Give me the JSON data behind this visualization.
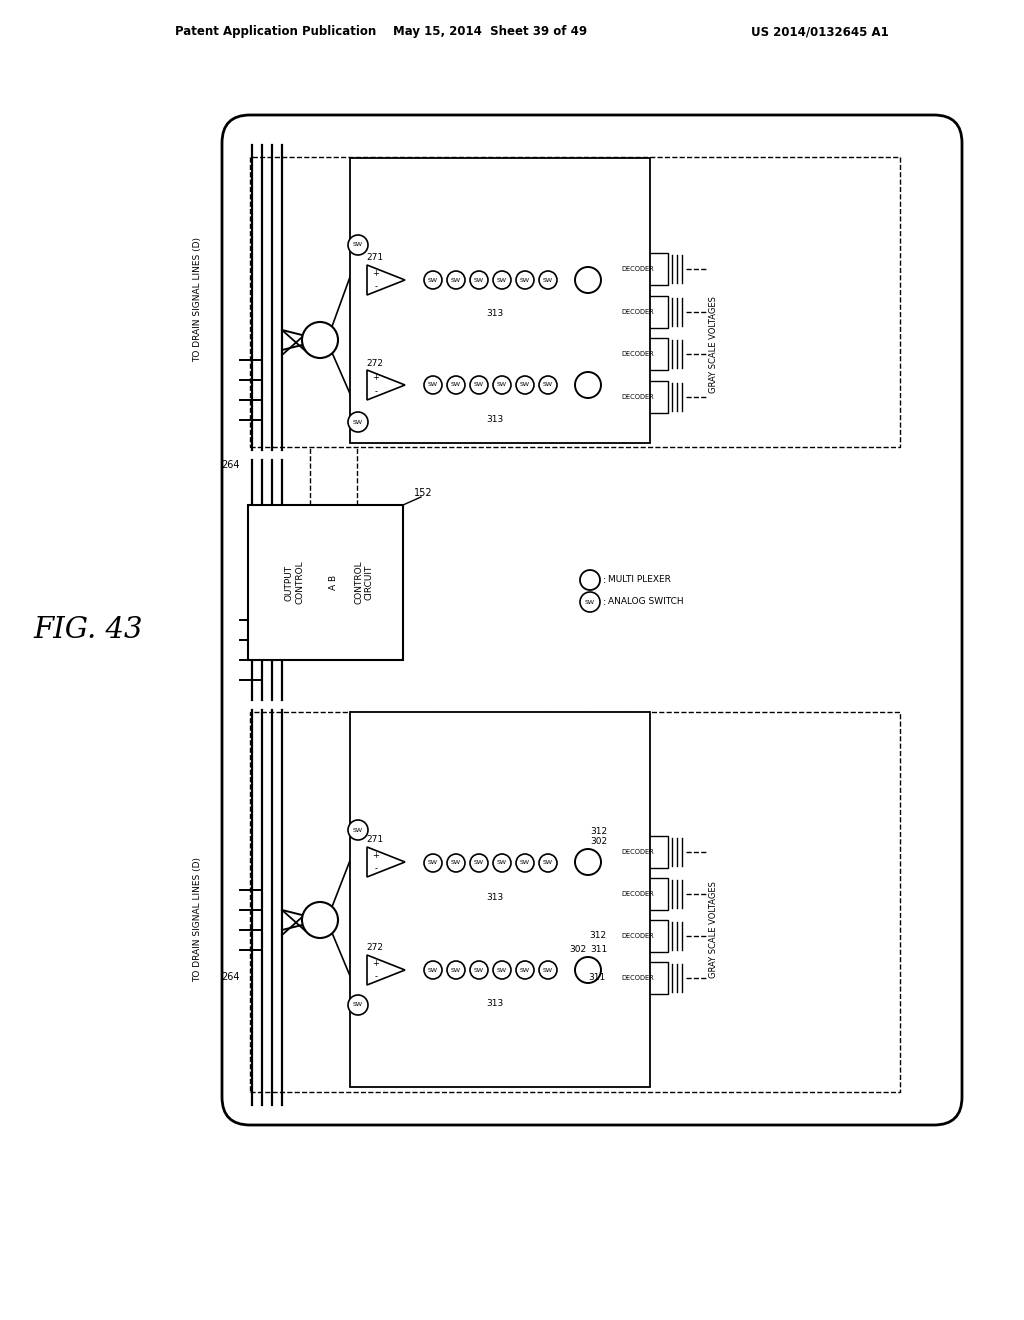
{
  "bg_color": "#ffffff",
  "header_text": "Patent Application Publication",
  "header_date": "May 15, 2014  Sheet 39 of 49",
  "header_patent": "US 2014/0132645 A1",
  "fig_label": "FIG. 43"
}
